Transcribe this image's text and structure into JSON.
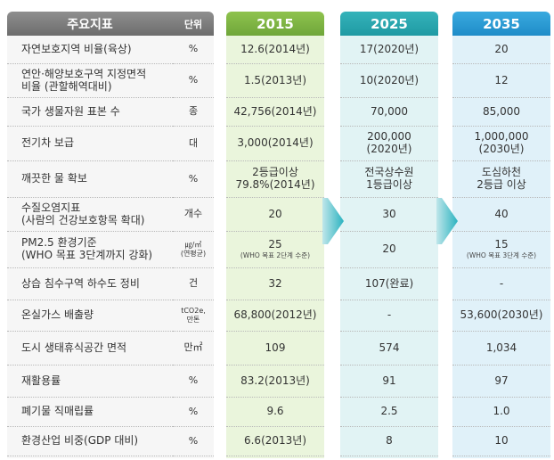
{
  "headers": {
    "indicator": "주요지표",
    "unit": "단위",
    "y2015": "2015",
    "y2025": "2025",
    "y2035": "2035"
  },
  "rows": [
    {
      "label": [
        "자연보호지역 비율(육상)"
      ],
      "unit": [
        "%"
      ],
      "v2015": [
        "12.6(2014년)"
      ],
      "v2015_note": "",
      "v2025": [
        "17(2020년)"
      ],
      "v2035": [
        "20"
      ],
      "v2035_note": ""
    },
    {
      "label": [
        "연안·해양보호구역 지정면적",
        "비율 (관할해역대비)"
      ],
      "unit": [
        "%"
      ],
      "v2015": [
        "1.5(2013년)"
      ],
      "v2015_note": "",
      "v2025": [
        "10(2020년)"
      ],
      "v2035": [
        "12"
      ],
      "v2035_note": ""
    },
    {
      "label": [
        "국가 생물자원 표본 수"
      ],
      "unit": [
        "종"
      ],
      "v2015": [
        "42,756(2014년)"
      ],
      "v2015_note": "",
      "v2025": [
        "70,000"
      ],
      "v2035": [
        "85,000"
      ],
      "v2035_note": ""
    },
    {
      "label": [
        "전기차 보급"
      ],
      "unit": [
        "대"
      ],
      "v2015": [
        "3,000(2014년)"
      ],
      "v2015_note": "",
      "v2025": [
        "200,000",
        "(2020년)"
      ],
      "v2035": [
        "1,000,000",
        "(2030년)"
      ],
      "v2035_note": ""
    },
    {
      "label": [
        "깨끗한 물 확보"
      ],
      "unit": [
        "%"
      ],
      "v2015": [
        "2등급이상",
        "79.8%(2014년)"
      ],
      "v2015_note": "",
      "v2025": [
        "전국상수원",
        "1등급이상"
      ],
      "v2035": [
        "도심하천",
        "2등급 이상"
      ],
      "v2035_note": ""
    },
    {
      "label": [
        "수질오염지표",
        "(사람의 건강보호항목 확대)"
      ],
      "unit": [
        "개수"
      ],
      "v2015": [
        "20"
      ],
      "v2015_note": "",
      "v2025": [
        "30"
      ],
      "v2035": [
        "40"
      ],
      "v2035_note": ""
    },
    {
      "label": [
        "PM2.5 환경기준",
        "(WHO 목표 3단계까지 강화)"
      ],
      "unit": [
        "㎍/㎥",
        "(연평균)"
      ],
      "v2015": [
        "25"
      ],
      "v2015_note": "(WHO 목표 2단계 수준)",
      "v2025": [
        "20"
      ],
      "v2035": [
        "15"
      ],
      "v2035_note": "(WHO 목표 3단계 수준)"
    },
    {
      "label": [
        "상습 침수구역 하수도 정비"
      ],
      "unit": [
        "건"
      ],
      "v2015": [
        "32"
      ],
      "v2015_note": "",
      "v2025": [
        "107(완료)"
      ],
      "v2035": [
        "-"
      ],
      "v2035_note": ""
    },
    {
      "label": [
        "온실가스 배출량"
      ],
      "unit": [
        "tCO2e,",
        "만톤"
      ],
      "v2015": [
        "68,800(2012년)"
      ],
      "v2015_note": "",
      "v2025": [
        "-"
      ],
      "v2035": [
        "53,600(2030년)"
      ],
      "v2035_note": ""
    },
    {
      "label": [
        "도시 생태휴식공간 면적"
      ],
      "unit": [
        "만㎡"
      ],
      "v2015": [
        "109"
      ],
      "v2015_note": "",
      "v2025": [
        "574"
      ],
      "v2035": [
        "1,034"
      ],
      "v2035_note": ""
    },
    {
      "label": [
        "재활용률"
      ],
      "unit": [
        "%"
      ],
      "v2015": [
        "83.2(2013년)"
      ],
      "v2015_note": "",
      "v2025": [
        "91"
      ],
      "v2035": [
        "97"
      ],
      "v2035_note": ""
    },
    {
      "label": [
        "폐기물 직매립률"
      ],
      "unit": [
        "%"
      ],
      "v2015": [
        "9.6"
      ],
      "v2015_note": "",
      "v2025": [
        "2.5"
      ],
      "v2035": [
        "1.0"
      ],
      "v2035_note": ""
    },
    {
      "label": [
        "환경산업 비중(GDP 대비)"
      ],
      "unit": [
        "%"
      ],
      "v2015": [
        "6.6(2013년)"
      ],
      "v2015_note": "",
      "v2025": [
        "8"
      ],
      "v2035": [
        "10"
      ],
      "v2035_note": ""
    }
  ],
  "colors": {
    "header_gray": "#7d7d7d",
    "header_2015": "#7fb544",
    "header_2025": "#29a8b0",
    "header_2035": "#2c9bd6",
    "bg_2015": "#eaf5dc",
    "bg_2025": "#e1f3f4",
    "bg_2035": "#e0f1f9",
    "arrow": "#2bb3c0"
  },
  "icons": [
    "arrow-right-icon",
    "arrow-right-icon"
  ]
}
